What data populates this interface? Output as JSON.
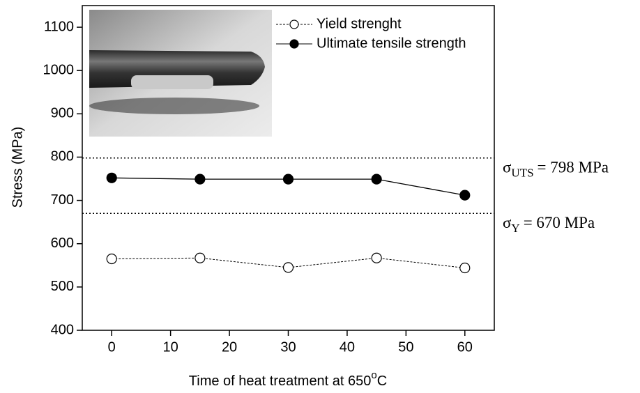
{
  "chart_data": {
    "type": "line",
    "x_label": {
      "main": "Time of heat treatment at 650",
      "sup": "o",
      "unit": "C"
    },
    "y_label": "Stress (MPa)",
    "x": [
      0,
      15,
      30,
      45,
      60
    ],
    "xlim": [
      -5,
      65
    ],
    "xticks": [
      0,
      10,
      20,
      30,
      40,
      50,
      60
    ],
    "ylim": [
      400,
      1150
    ],
    "yticks": [
      400,
      500,
      600,
      700,
      800,
      900,
      1000,
      1100
    ],
    "grid": false,
    "legend": "upper right",
    "series": [
      {
        "name": "Yield strenght",
        "color": "#000000",
        "dashed": true,
        "filled": false,
        "values": [
          565,
          567,
          545,
          567,
          544
        ]
      },
      {
        "name": "Ultimate tensile strength",
        "color": "#000000",
        "dashed": false,
        "filled": true,
        "values": [
          752,
          749,
          749,
          749,
          712
        ]
      }
    ],
    "reference_lines": [
      {
        "value": 798,
        "symbol": "σ",
        "sub": "UTS",
        "text": "= 798 MPa"
      },
      {
        "value": 670,
        "symbol": "σ",
        "sub": "Y",
        "text": "= 670 MPa"
      }
    ]
  }
}
